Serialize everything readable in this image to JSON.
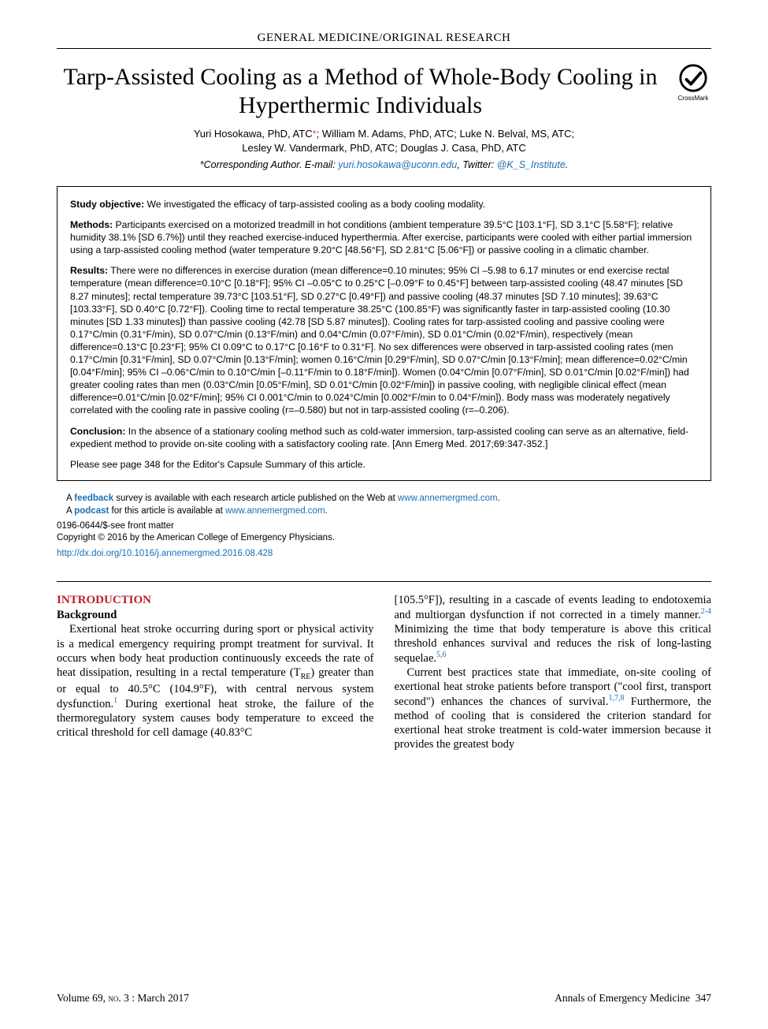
{
  "section_header": "GENERAL MEDICINE/ORIGINAL RESEARCH",
  "title": "Tarp-Assisted Cooling as a Method of Whole-Body Cooling in Hyperthermic Individuals",
  "crossmark_label": "CrossMark",
  "authors_line1": "Yuri Hosokawa, PhD, ATC*; William M. Adams, PhD, ATC; Luke N. Belval, MS, ATC;",
  "authors_line2": "Lesley W. Vandermark, PhD, ATC; Douglas J. Casa, PhD, ATC",
  "corresponding_prefix": "*Corresponding Author. E-mail: ",
  "corresponding_email": "yuri.hosokawa@uconn.edu",
  "corresponding_mid": ", Twitter: ",
  "corresponding_twitter": "@K_S_Institute",
  "abstract": {
    "objective_label": "Study objective:",
    "objective_text": " We investigated the efficacy of tarp-assisted cooling as a body cooling modality.",
    "methods_label": "Methods:",
    "methods_text": " Participants exercised on a motorized treadmill in hot conditions (ambient temperature 39.5°C [103.1°F], SD 3.1°C [5.58°F]; relative humidity 38.1% [SD 6.7%]) until they reached exercise-induced hyperthermia. After exercise, participants were cooled with either partial immersion using a tarp-assisted cooling method (water temperature 9.20°C [48.56°F], SD 2.81°C [5.06°F]) or passive cooling in a climatic chamber.",
    "results_label": "Results:",
    "results_text": " There were no differences in exercise duration (mean difference=0.10 minutes; 95% CI –5.98 to 6.17 minutes or end exercise rectal temperature (mean difference=0.10°C [0.18°F]; 95% CI –0.05°C to 0.25°C [–0.09°F to 0.45°F] between tarp-assisted cooling (48.47 minutes [SD 8.27 minutes]; rectal temperature 39.73°C [103.51°F], SD 0.27°C [0.49°F]) and passive cooling (48.37 minutes [SD 7.10 minutes]; 39.63°C [103.33°F], SD 0.40°C [0.72°F]). Cooling time to rectal temperature 38.25°C (100.85°F) was significantly faster in tarp-assisted cooling (10.30 minutes [SD 1.33 minutes]) than passive cooling (42.78 [SD 5.87 minutes]). Cooling rates for tarp-assisted cooling and passive cooling were 0.17°C/min (0.31°F/min), SD 0.07°C/min (0.13°F/min) and 0.04°C/min (0.07°F/min), SD 0.01°C/min (0.02°F/min), respectively (mean difference=0.13°C [0.23°F]; 95% CI 0.09°C to 0.17°C [0.16°F to 0.31°F]. No sex differences were observed in tarp-assisted cooling rates (men 0.17°C/min [0.31°F/min], SD 0.07°C/min [0.13°F/min]; women 0.16°C/min [0.29°F/min], SD 0.07°C/min [0.13°F/min]; mean difference=0.02°C/min [0.04°F/min]; 95% CI –0.06°C/min to 0.10°C/min [–0.11°F/min to 0.18°F/min]). Women (0.04°C/min [0.07°F/min], SD 0.01°C/min [0.02°F/min]) had greater cooling rates than men (0.03°C/min [0.05°F/min], SD 0.01°C/min [0.02°F/min]) in passive cooling, with negligible clinical effect (mean difference=0.01°C/min [0.02°F/min]; 95% CI 0.001°C/min to 0.024°C/min [0.002°F/min to 0.04°F/min]). Body mass was moderately negatively correlated with the cooling rate in passive cooling (r=–0.580) but not in tarp-assisted cooling (r=–0.206).",
    "conclusion_label": "Conclusion:",
    "conclusion_text": " In the absence of a stationary cooling method such as cold-water immersion, tarp-assisted cooling can serve as an alternative, field-expedient method to provide on-site cooling with a satisfactory cooling rate. [Ann Emerg Med. 2017;69:347-352.]",
    "capsule": "Please see page 348 for the Editor's Capsule Summary of this article."
  },
  "links": {
    "feedback_pre": "A ",
    "feedback_link": "feedback",
    "feedback_post": " survey is available with each research article published on the Web at ",
    "feedback_url": "www.annemergmed.com",
    "podcast_pre": "A ",
    "podcast_link": "podcast",
    "podcast_post": " for this article is available at ",
    "podcast_url": "www.annemergmed.com"
  },
  "copyright": {
    "line1": "0196-0644/$-see front matter",
    "line2": "Copyright © 2016 by the American College of Emergency Physicians.",
    "doi": "http://dx.doi.org/10.1016/j.annemergmed.2016.08.428"
  },
  "body": {
    "intro_heading": "INTRODUCTION",
    "background_heading": "Background",
    "col1_p1a": "Exertional heat stroke occurring during sport or physical activity is a medical emergency requiring prompt treatment for survival. It occurs when body heat production continuously exceeds the rate of heat dissipation, resulting in a rectal temperature (T",
    "col1_p1_re": "RE",
    "col1_p1b": ") greater than or equal to 40.5°C (104.9°F), with central nervous system dysfunction.",
    "ref1": "1",
    "col1_p1c": " During exertional heat stroke, the failure of the thermoregulatory system causes body temperature to exceed the critical threshold for cell damage (40.83°C",
    "col2_p1a": "[105.5°F]), resulting in a cascade of events leading to endotoxemia and multiorgan dysfunction if not corrected in a timely manner.",
    "ref24": "2-4",
    "col2_p1b": " Minimizing the time that body temperature is above this critical threshold enhances survival and reduces the risk of long-lasting sequelae.",
    "ref56": "5,6",
    "col2_p2a": "Current best practices state that immediate, on-site cooling of exertional heat stroke patients before transport (\"cool first, transport second\") enhances the chances of survival.",
    "ref178": "1,7,8",
    "col2_p2b": " Furthermore, the method of cooling that is considered the criterion standard for exertional heat stroke treatment is cold-water immersion because it provides the greatest body"
  },
  "footer": {
    "left_pre": "Volume ",
    "left_vol": "69, ",
    "left_no": "no. ",
    "left_issue": "3 : ",
    "left_date": "March 2017",
    "right": "Annals of Emergency Medicine",
    "page": "347"
  },
  "colors": {
    "link": "#1a6fb5",
    "heading_red": "#bf1e2e",
    "star": "#d9534f"
  }
}
